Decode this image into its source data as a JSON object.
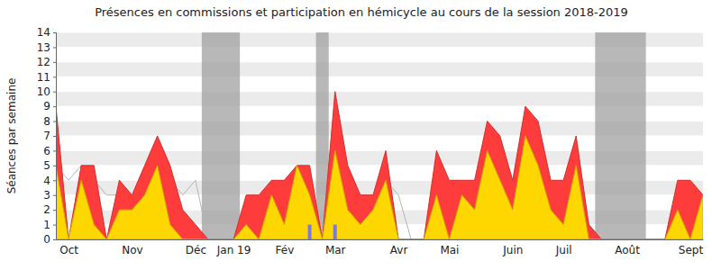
{
  "chart_data": {
    "type": "area",
    "title": "Présences en commissions et participation en hémicycle au cours de la session 2018-2019",
    "y_label": "Séances par semaine",
    "categories": [
      null,
      "Oct",
      null,
      null,
      null,
      null,
      "Nov",
      null,
      null,
      null,
      null,
      "Déc",
      null,
      null,
      "Jan 19",
      null,
      null,
      null,
      "Fév",
      null,
      null,
      null,
      "Mar",
      null,
      null,
      null,
      null,
      "Avr",
      null,
      null,
      null,
      "Mai",
      null,
      null,
      null,
      null,
      "Juin",
      null,
      null,
      null,
      "Juil",
      null,
      null,
      null,
      null,
      "Août",
      null,
      null,
      null,
      null,
      "Sept",
      null
    ],
    "series": [
      {
        "type": "line",
        "color": "#b4b4b4",
        "values": [
          5,
          4,
          5,
          4,
          3,
          3,
          3,
          4,
          5,
          4,
          3,
          4,
          0,
          0,
          0,
          2,
          3,
          3,
          3,
          4,
          4,
          0,
          5,
          3,
          3,
          3,
          4,
          3,
          0,
          0,
          4,
          3,
          3,
          3,
          5,
          5,
          3,
          6,
          5,
          3,
          3,
          5,
          1,
          0,
          0,
          0,
          0,
          0,
          0,
          3,
          3,
          3
        ]
      },
      {
        "type": "area",
        "color": "#ff3c3c",
        "values": [
          9,
          0,
          5,
          5,
          0,
          4,
          3,
          5,
          7,
          5,
          2,
          1,
          0,
          0,
          0,
          3,
          3,
          4,
          4,
          5,
          5,
          0,
          10,
          5,
          3,
          3,
          6,
          0,
          0,
          0,
          6,
          4,
          4,
          4,
          8,
          7,
          4,
          9,
          8,
          4,
          4,
          7,
          1,
          0,
          0,
          0,
          0,
          0,
          0,
          4,
          4,
          3
        ]
      },
      {
        "type": "area",
        "color": "#ffd700",
        "values": [
          5,
          0,
          4,
          1,
          0,
          2,
          2,
          3,
          5,
          1,
          0,
          0,
          0,
          0,
          0,
          1,
          0,
          3,
          1,
          5,
          3,
          0,
          6,
          2,
          1,
          2,
          4,
          0,
          0,
          0,
          3,
          0,
          3,
          2,
          6,
          4,
          2,
          7,
          5,
          2,
          1,
          5,
          0,
          0,
          0,
          0,
          0,
          0,
          0,
          2,
          0,
          3
        ]
      },
      {
        "type": "bar",
        "color": "#7b7bdc",
        "values": [
          0,
          0,
          0,
          0,
          0,
          0,
          0,
          0,
          0,
          0,
          0,
          0,
          0,
          0,
          0,
          0,
          0,
          0,
          0,
          0,
          1,
          0,
          1,
          0,
          0,
          0,
          0,
          0,
          0,
          0,
          0,
          0,
          0,
          0,
          0,
          0,
          0,
          0,
          0,
          0,
          0,
          0,
          0,
          0,
          0,
          0,
          0,
          0,
          0,
          0,
          0,
          0
        ]
      }
    ],
    "shaded_periods": [
      {
        "start": 12,
        "end": 14
      },
      {
        "start": 21,
        "end": 21
      },
      {
        "start": 43,
        "end": 46
      }
    ],
    "ylim": [
      0,
      14
    ],
    "yticks": [
      0,
      1,
      2,
      3,
      4,
      5,
      6,
      7,
      8,
      9,
      10,
      11,
      12,
      13,
      14
    ],
    "grid": true
  }
}
